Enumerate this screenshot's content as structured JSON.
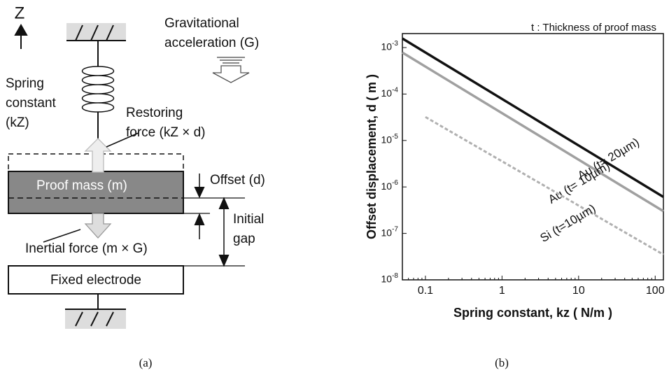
{
  "diagram": {
    "axis_label": "Z",
    "gravity_1": "Gravitational",
    "gravity_2": "acceleration (G)",
    "spring_1": "Spring",
    "spring_2": "constant",
    "spring_3": "(kZ)",
    "restoring_1": "Restoring",
    "restoring_2": "force (kZ × d)",
    "proof_mass": "Proof mass (m)",
    "offset": "Offset (d)",
    "gap_1": "Initial",
    "gap_2": "gap",
    "inertial": "Inertial force (m × G)",
    "electrode": "Fixed electrode",
    "caption": "(a)"
  },
  "chart_caption": "(b)",
  "chart_data": {
    "type": "line",
    "note": "t : Thickness of proof mass",
    "x_label": "Spring constant, kz ( N/m )",
    "y_label": "Offset displacement, d ( m )",
    "log_x": true,
    "log_y": true,
    "xlim": [
      0.05,
      128
    ],
    "ylim": [
      1e-08,
      0.002
    ],
    "xticks": [
      0.1,
      1,
      10,
      100
    ],
    "yticks": [
      {
        "value": 0.001,
        "label": "10-3"
      },
      {
        "value": 0.0001,
        "label": "10-4"
      },
      {
        "value": 1e-05,
        "label": "10-5"
      },
      {
        "value": 1e-06,
        "label": "10-6"
      },
      {
        "value": 1e-07,
        "label": "10-7"
      },
      {
        "value": 1e-08,
        "label": "10-8"
      }
    ],
    "series": [
      {
        "name": "Au (t= 20µm)",
        "color": "#111111",
        "style": "solid",
        "x": [
          0.05,
          128
        ],
        "values": [
          0.00157,
          6.1e-07
        ]
      },
      {
        "name": "Au (t= 10µm)",
        "color": "#a0a0a0",
        "style": "solid",
        "x": [
          0.05,
          128
        ],
        "values": [
          0.00078,
          3e-07
        ]
      },
      {
        "name": "Si (t=10µm)",
        "color": "#b0b0b0",
        "style": "dashed",
        "x": [
          0.1,
          128
        ],
        "values": [
          3.2e-05,
          3.5e-08
        ]
      }
    ]
  }
}
